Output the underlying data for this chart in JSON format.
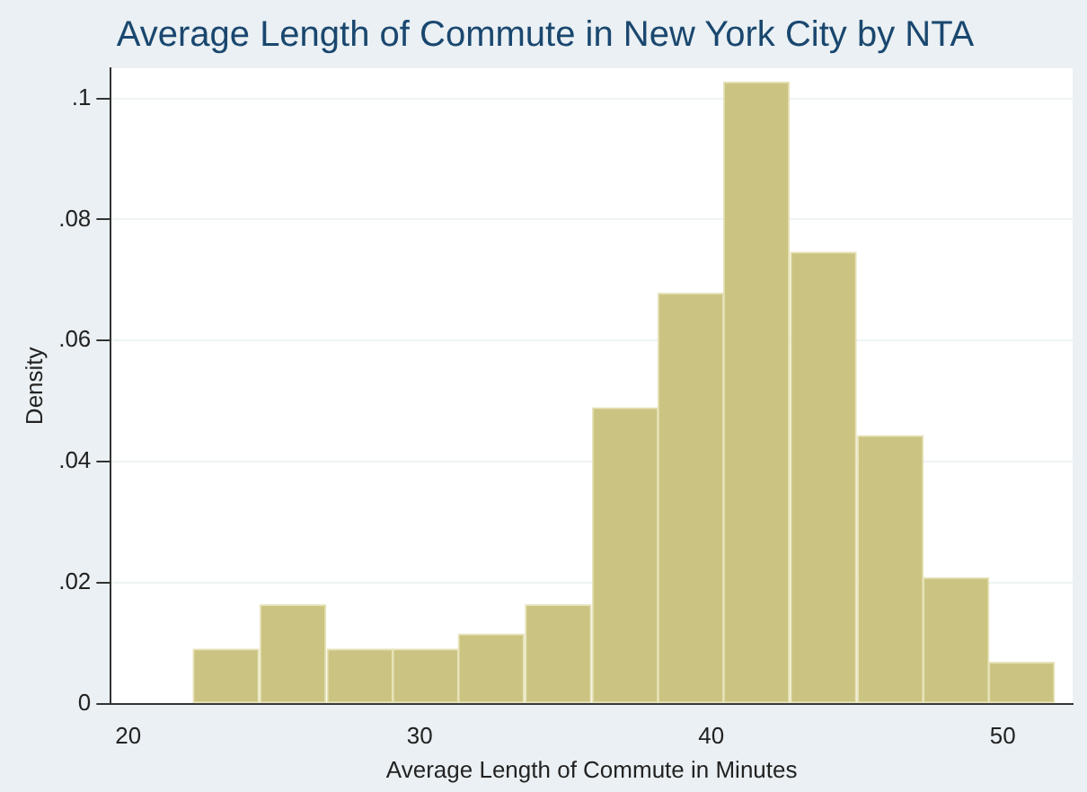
{
  "chart_data": {
    "type": "histogram",
    "title": "Average Length of Commute in New York City by NTA",
    "xlabel": "Average Length of Commute in Minutes",
    "ylabel": "Density",
    "bins": [
      22.2,
      24.5,
      26.8,
      29.1,
      31.3,
      33.6,
      35.9,
      38.2,
      40.4,
      42.7,
      45.0,
      47.3,
      49.5,
      51.8
    ],
    "values": [
      0.009,
      0.0163,
      0.009,
      0.009,
      0.0115,
      0.0163,
      0.0489,
      0.0678,
      0.1027,
      0.0746,
      0.0443,
      0.0208,
      0.0068
    ],
    "color": "#cbc381",
    "xlim": [
      19.4,
      52.4
    ],
    "xticks": [
      20,
      30,
      40,
      50
    ],
    "ylim": [
      0,
      0.105
    ],
    "yticks": [
      0,
      {
        "value": 0.02,
        "label": ".02"
      },
      {
        "value": 0.04,
        "label": ".04"
      },
      {
        "value": 0.06,
        "label": ".06"
      },
      {
        "value": 0.08,
        "label": ".08"
      },
      {
        "value": 0.1,
        "label": ".1"
      }
    ],
    "grid": "y"
  }
}
